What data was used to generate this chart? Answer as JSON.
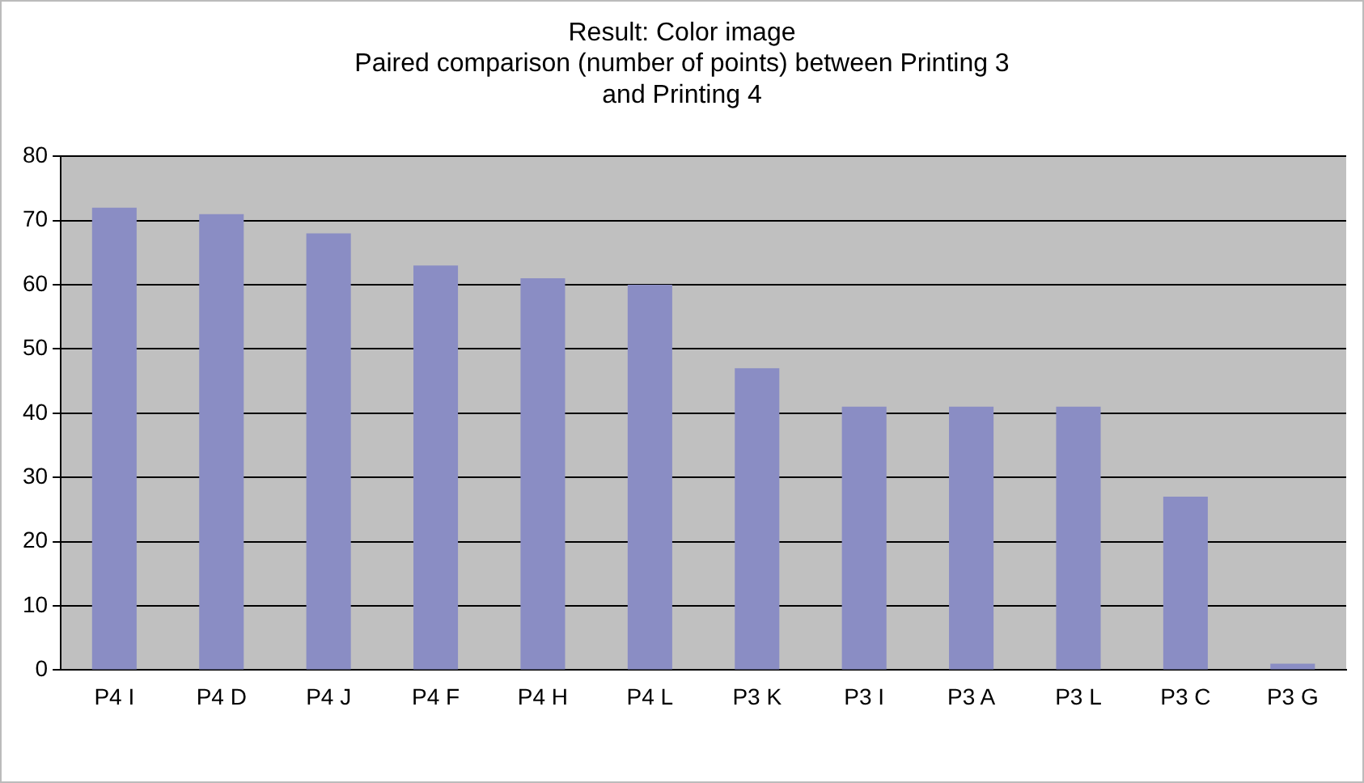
{
  "chart_data": {
    "type": "bar",
    "title": [
      "Result: Color image",
      "Paired comparison (number of points) between Printing 3",
      "and Printing 4"
    ],
    "categories": [
      "P4 I",
      "P4 D",
      "P4 J",
      "P4 F",
      "P4 H",
      "P4 L",
      "P3 K",
      "P3 I",
      "P3 A",
      "P3 L",
      "P3 C",
      "P3 G"
    ],
    "values": [
      72,
      71,
      68,
      63,
      61,
      60,
      47,
      41,
      41,
      41,
      27,
      1
    ],
    "color": "#8a8dc4",
    "ylim": [
      0,
      80
    ],
    "yticks": [
      0,
      10,
      20,
      30,
      40,
      50,
      60,
      70,
      80
    ],
    "grid": "y",
    "legend": false
  }
}
